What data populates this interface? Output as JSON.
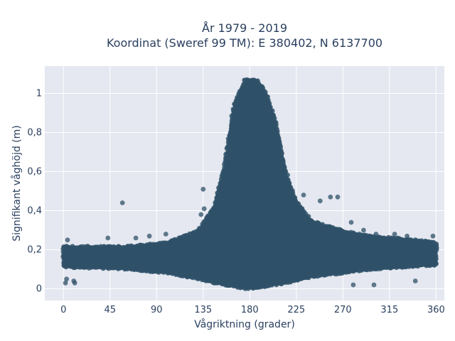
{
  "chart_data": {
    "type": "scatter",
    "title_line1": "År 1979 - 2019",
    "title_line2": "Koordinat (Sweref 99 TM): E 380402, N 6137700",
    "xlabel": "Vågriktning (grader)",
    "ylabel": "Signifikant våghöjd (m)",
    "xlim": [
      -18,
      368
    ],
    "ylim": [
      -0.06,
      1.14
    ],
    "xticks": [
      0,
      45,
      90,
      135,
      180,
      225,
      270,
      315,
      360
    ],
    "xtick_labels": [
      "0",
      "45",
      "90",
      "135",
      "180",
      "225",
      "270",
      "315",
      "360"
    ],
    "yticks": [
      0,
      0.2,
      0.4,
      0.6,
      0.8,
      1
    ],
    "ytick_labels": [
      "0",
      "0,2",
      "0,4",
      "0,6",
      "0,8",
      "1"
    ],
    "grid": true,
    "colors": {
      "marker": "#2f5168",
      "plot_bg": "#e5e8f0",
      "grid": "#ffffff"
    },
    "envelope": {
      "direction": [
        0,
        60,
        100,
        130,
        145,
        155,
        165,
        175,
        185,
        195,
        205,
        215,
        225,
        240,
        270,
        300,
        330,
        360
      ],
      "upper": [
        0.22,
        0.22,
        0.24,
        0.3,
        0.42,
        0.62,
        0.95,
        1.07,
        1.08,
        1.02,
        0.86,
        0.6,
        0.45,
        0.35,
        0.3,
        0.27,
        0.26,
        0.24
      ],
      "lower": [
        0.11,
        0.1,
        0.08,
        0.05,
        0.03,
        0.02,
        0.01,
        0.0,
        0.0,
        0.01,
        0.02,
        0.03,
        0.04,
        0.06,
        0.08,
        0.1,
        0.11,
        0.12
      ]
    },
    "outliers": [
      {
        "x": 57,
        "y": 0.44
      },
      {
        "x": 133,
        "y": 0.38
      },
      {
        "x": 136,
        "y": 0.41
      },
      {
        "x": 135,
        "y": 0.51
      },
      {
        "x": 232,
        "y": 0.48
      },
      {
        "x": 248,
        "y": 0.45
      },
      {
        "x": 258,
        "y": 0.47
      },
      {
        "x": 265,
        "y": 0.47
      },
      {
        "x": 4,
        "y": 0.25
      },
      {
        "x": 43,
        "y": 0.26
      },
      {
        "x": 70,
        "y": 0.26
      },
      {
        "x": 83,
        "y": 0.27
      },
      {
        "x": 99,
        "y": 0.28
      },
      {
        "x": 278,
        "y": 0.34
      },
      {
        "x": 290,
        "y": 0.3
      },
      {
        "x": 302,
        "y": 0.28
      },
      {
        "x": 320,
        "y": 0.28
      },
      {
        "x": 332,
        "y": 0.27
      },
      {
        "x": 357,
        "y": 0.27
      },
      {
        "x": 3,
        "y": 0.05
      },
      {
        "x": 2,
        "y": 0.03
      },
      {
        "x": 10,
        "y": 0.04
      },
      {
        "x": 11,
        "y": 0.03
      },
      {
        "x": 280,
        "y": 0.02
      },
      {
        "x": 300,
        "y": 0.02
      },
      {
        "x": 340,
        "y": 0.04
      }
    ]
  }
}
